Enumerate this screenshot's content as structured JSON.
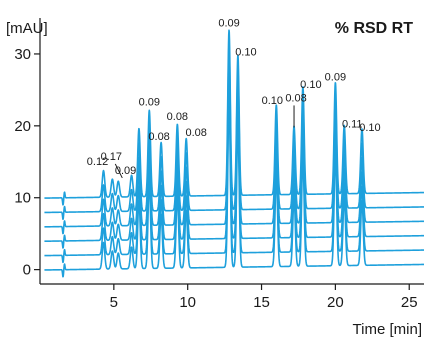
{
  "chart_data": {
    "type": "line",
    "title": "% RSD RT",
    "ylabel": "[mAU]",
    "xlabel": "Time [min]",
    "xlim": [
      0,
      26
    ],
    "ylim": [
      -2,
      35
    ],
    "xticks": [
      5,
      10,
      15,
      20,
      25
    ],
    "yticks": [
      0,
      10,
      20,
      30
    ],
    "grid": false,
    "replicate_count": 6,
    "replicate_offsets": [
      0,
      2,
      4,
      6,
      8,
      10
    ],
    "baseline_disturbance_x": 1.6,
    "peaks": [
      {
        "x": 4.3,
        "height": 3.7,
        "rsd": "0.12"
      },
      {
        "x": 4.9,
        "height": 2.5,
        "rsd": ""
      },
      {
        "x": 5.3,
        "height": 2.2,
        "rsd": "0.17"
      },
      {
        "x": 6.2,
        "height": 3.0,
        "rsd": "0.09"
      },
      {
        "x": 6.7,
        "height": 9.5,
        "rsd": ""
      },
      {
        "x": 7.4,
        "height": 12.0,
        "rsd": "0.09"
      },
      {
        "x": 8.2,
        "height": 7.5,
        "rsd": "0.08"
      },
      {
        "x": 9.3,
        "height": 10.0,
        "rsd": "0.08"
      },
      {
        "x": 9.9,
        "height": 8.0,
        "rsd": "0.08"
      },
      {
        "x": 12.8,
        "height": 23.0,
        "rsd": "0.09"
      },
      {
        "x": 13.4,
        "height": 19.5,
        "rsd": "0.10"
      },
      {
        "x": 16.0,
        "height": 12.5,
        "rsd": "0.10"
      },
      {
        "x": 17.2,
        "height": 9.5,
        "rsd": "0.08"
      },
      {
        "x": 17.8,
        "height": 15.0,
        "rsd": "0.10"
      },
      {
        "x": 20.0,
        "height": 15.5,
        "rsd": "0.09"
      },
      {
        "x": 20.6,
        "height": 9.5,
        "rsd": "0.11"
      },
      {
        "x": 21.8,
        "height": 9.0,
        "rsd": "0.10"
      }
    ]
  }
}
